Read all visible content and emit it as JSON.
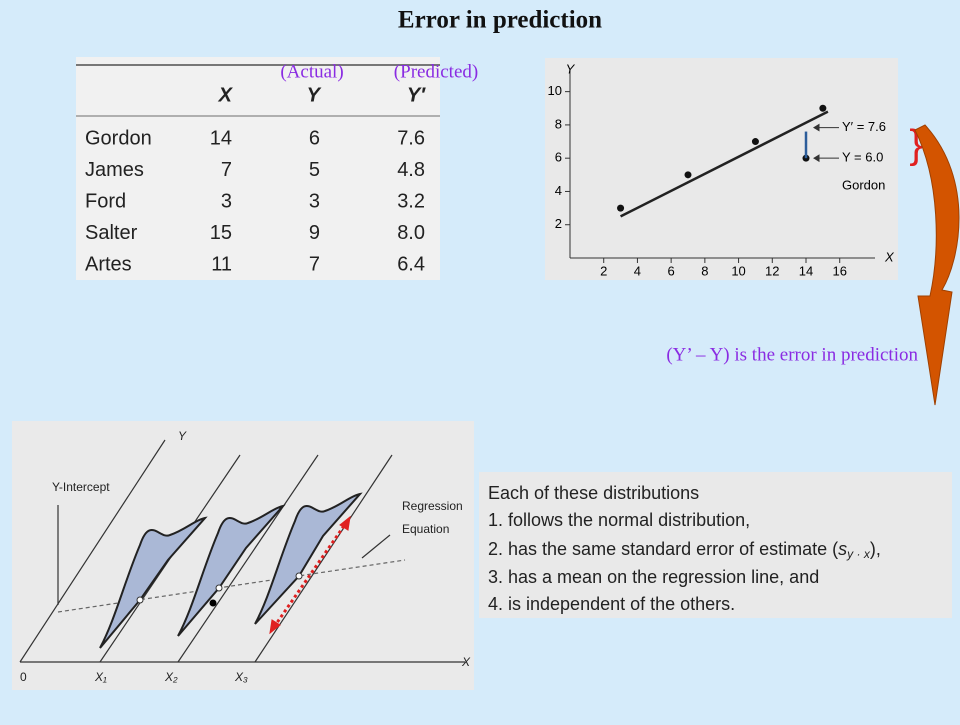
{
  "title": "Error in prediction",
  "column_notes": [
    "(Actual)",
    "(Predicted)"
  ],
  "table": {
    "header": [
      "X",
      "Y",
      "Y′"
    ],
    "rows": [
      [
        "Gordon",
        "14",
        "6",
        "7.6"
      ],
      [
        "James",
        "7",
        "5",
        "4.8"
      ],
      [
        "Ford",
        "3",
        "3",
        "3.2"
      ],
      [
        "Salter",
        "15",
        "9",
        "8.0"
      ],
      [
        "Artes",
        "11",
        "7",
        "6.4"
      ]
    ]
  },
  "chart_data": {
    "type": "scatter",
    "xlabel": "X",
    "ylabel": "Y",
    "series": [
      {
        "type": "scatter",
        "color": "#111111",
        "x": [
          3,
          7,
          11,
          14,
          15
        ],
        "values": [
          3,
          5,
          7,
          6,
          9
        ]
      },
      {
        "type": "line",
        "color": "#222222",
        "x": [
          3,
          15.3
        ],
        "values": [
          2.5,
          8.8
        ]
      },
      {
        "type": "line",
        "color": "#2c5d9a",
        "x": [
          14,
          14
        ],
        "values": [
          6,
          7.6
        ]
      }
    ],
    "annotations": [
      "Y′ = 7.6",
      "Y = 6.0",
      "Gordon"
    ],
    "xlim": [
      0,
      17.5
    ],
    "xticks": [
      2,
      4,
      6,
      8,
      10,
      12,
      14,
      16
    ],
    "ylim": [
      0,
      11
    ],
    "yticks": [
      2,
      4,
      6,
      8,
      10
    ],
    "grid": false
  },
  "error_note": "(Y’ – Y)  is the error in prediction",
  "bracket": "}",
  "diagram": {
    "y_axis": "Y",
    "x_axis": "X",
    "origin": "0",
    "intercept": "Y-Intercept",
    "regression": [
      "Regression",
      "Equation"
    ],
    "x_marks": [
      "X₁",
      "X₂",
      "X₃"
    ]
  },
  "properties": {
    "heading": "Each of these distributions",
    "items": [
      "1. follows the normal distribution,",
      "3. has a mean on the regression line, and",
      "4. is independent of the others."
    ],
    "item2": {
      "prefix": "2. has the same standard error of estimate (",
      "symbol": "s",
      "subscript": "y · x",
      "suffix": "),"
    }
  }
}
